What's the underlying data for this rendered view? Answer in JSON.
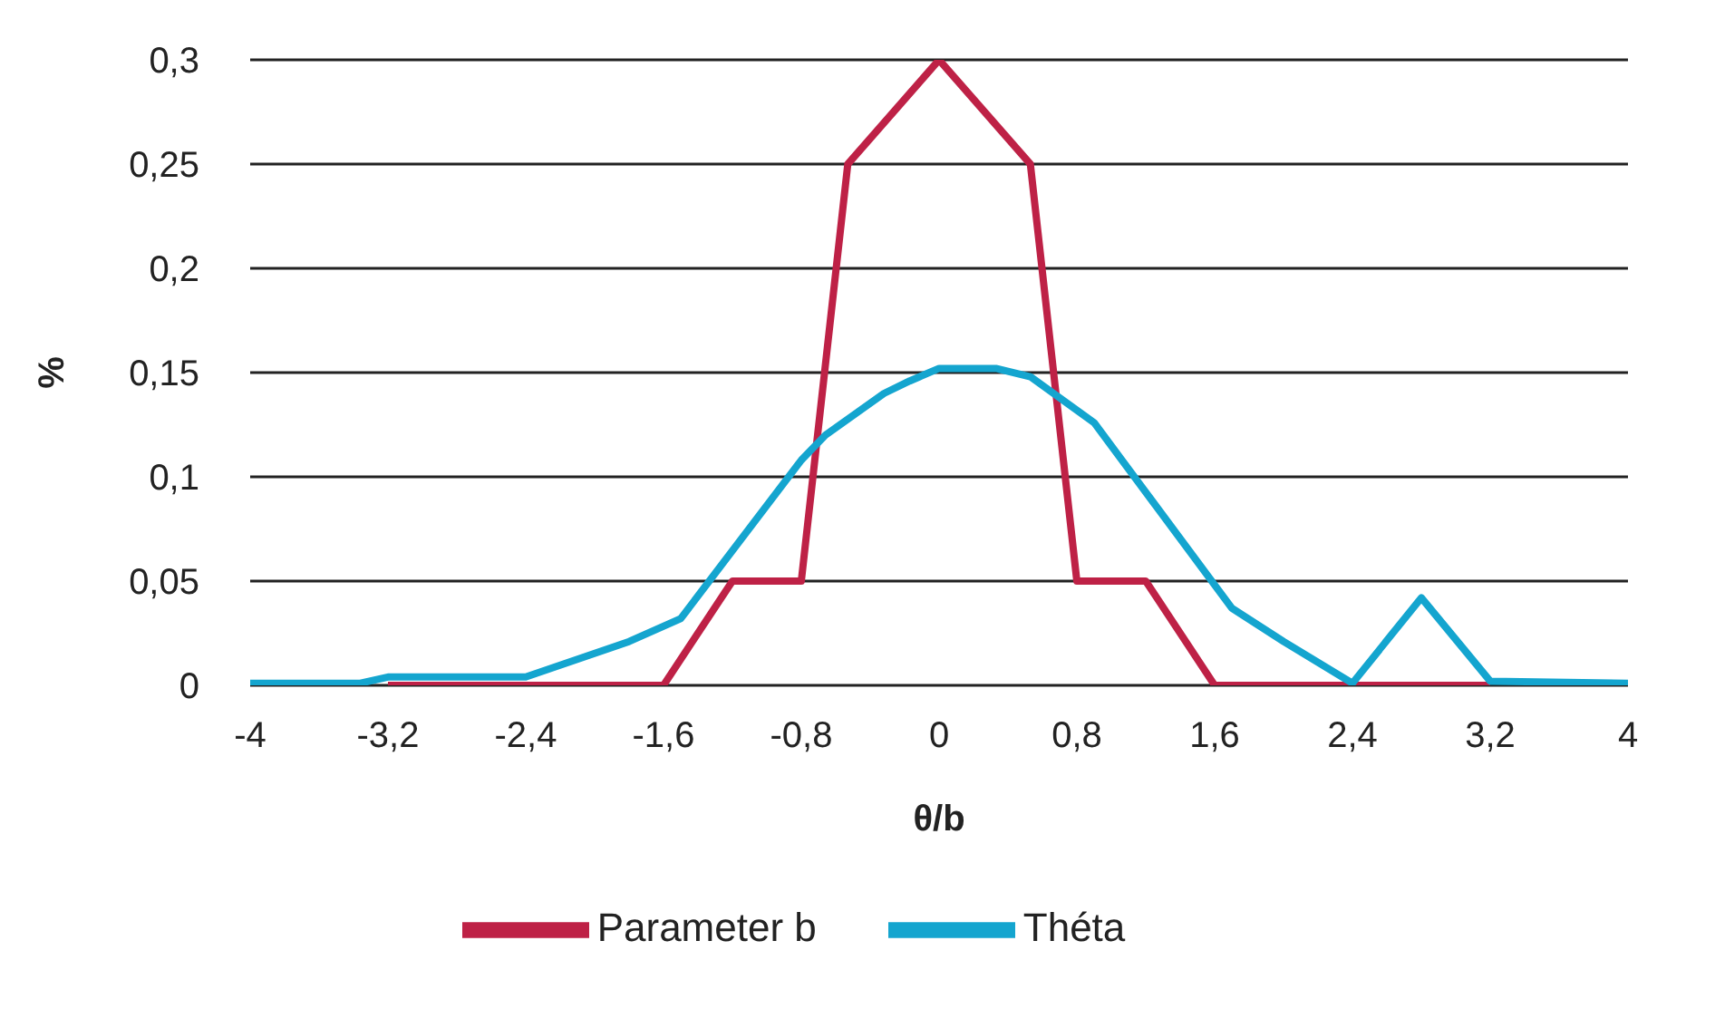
{
  "chart_data": {
    "type": "line",
    "xlabel": "θ/b",
    "ylabel": "%",
    "xlim": [
      -4,
      4
    ],
    "xticks": [
      {
        "value": -4,
        "label": "-4"
      },
      {
        "value": -3.2,
        "label": "-3,2"
      },
      {
        "value": -2.4,
        "label": "-2,4"
      },
      {
        "value": -1.6,
        "label": "-1,6"
      },
      {
        "value": -0.8,
        "label": "-0,8"
      },
      {
        "value": 0,
        "label": "0"
      },
      {
        "value": 0.8,
        "label": "0,8"
      },
      {
        "value": 1.6,
        "label": "1,6"
      },
      {
        "value": 2.4,
        "label": "2,4"
      },
      {
        "value": 3.2,
        "label": "3,2"
      },
      {
        "value": 4,
        "label": "4"
      }
    ],
    "ylim": [
      0,
      0.3
    ],
    "yticks": [
      {
        "value": 0,
        "label": "0"
      },
      {
        "value": 0.05,
        "label": "0,05"
      },
      {
        "value": 0.1,
        "label": "0,1"
      },
      {
        "value": 0.15,
        "label": "0,15"
      },
      {
        "value": 0.2,
        "label": "0,2"
      },
      {
        "value": 0.25,
        "label": "0,25"
      },
      {
        "value": 0.3,
        "label": "0,3"
      }
    ],
    "grid": "y",
    "legend": "bottom",
    "marker": "none",
    "line_style": "solid",
    "series": [
      {
        "name": "Parameter b",
        "color": "#be2146",
        "x": [
          -3.2,
          -1.6,
          -1.2,
          -0.8,
          -0.53,
          0,
          0.53,
          0.8,
          1.2,
          1.6,
          3.2
        ],
        "values": [
          0,
          0,
          0.05,
          0.05,
          0.25,
          0.3,
          0.25,
          0.05,
          0.05,
          0,
          0
        ]
      },
      {
        "name": "Théta",
        "color": "#14a5cf",
        "x": [
          -4,
          -3.36,
          -3.2,
          -2.4,
          -1.8,
          -1.5,
          -0.8,
          -0.66,
          -0.32,
          -0.17,
          0,
          0.33,
          0.53,
          0.9,
          1.7,
          2.0,
          2.4,
          2.8,
          3.2,
          4
        ],
        "values": [
          0.001,
          0.001,
          0.004,
          0.004,
          0.021,
          0.032,
          0.108,
          0.12,
          0.14,
          0.146,
          0.152,
          0.152,
          0.148,
          0.126,
          0.037,
          0.021,
          0.001,
          0.042,
          0.002,
          0.001
        ]
      }
    ]
  }
}
